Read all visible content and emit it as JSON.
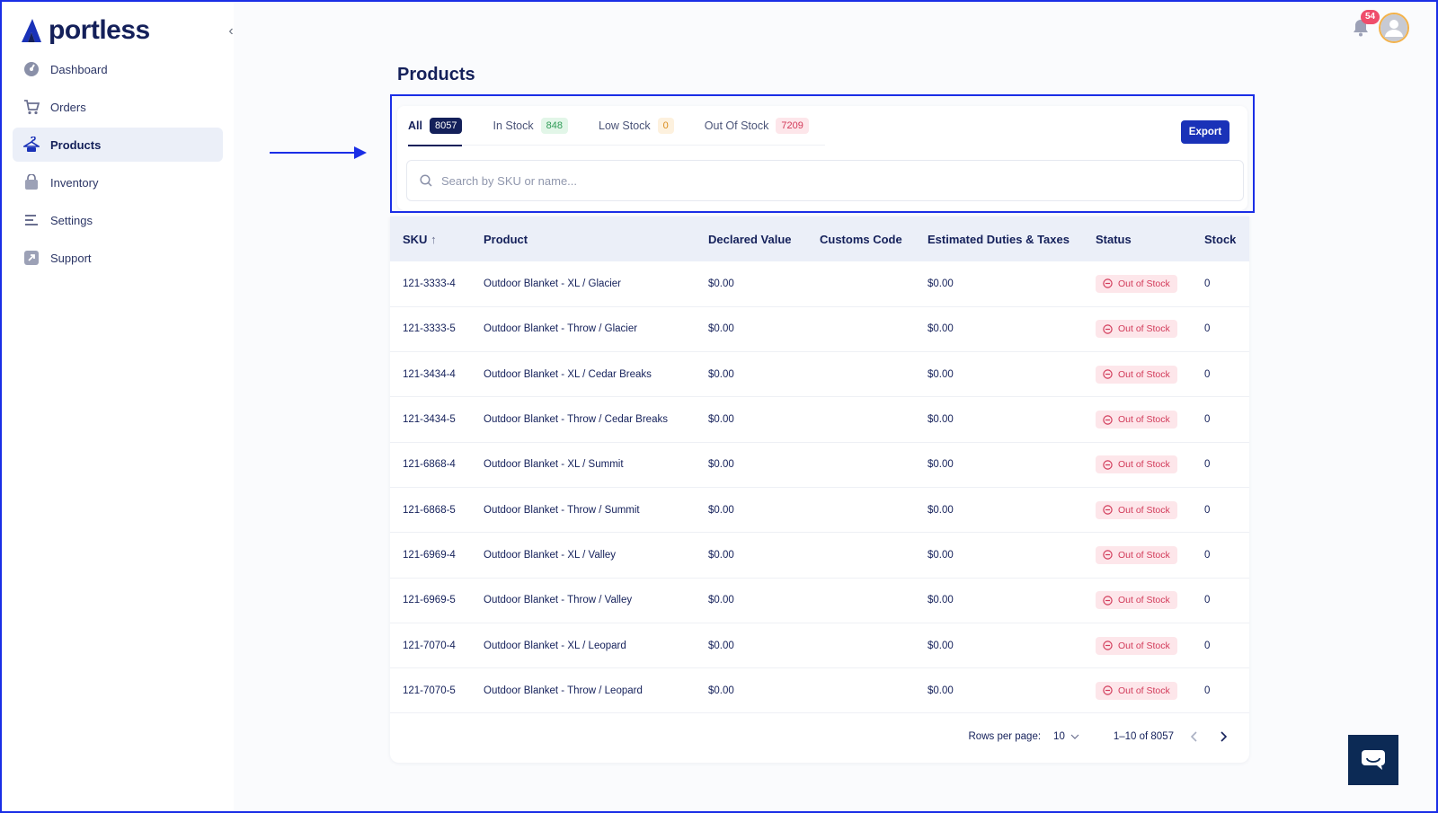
{
  "app": {
    "name": "portless"
  },
  "sidebar": {
    "items": [
      {
        "label": "Dashboard",
        "icon": "gauge-icon",
        "active": false
      },
      {
        "label": "Orders",
        "icon": "cart-icon",
        "active": false
      },
      {
        "label": "Products",
        "icon": "hanger-icon",
        "active": true
      },
      {
        "label": "Inventory",
        "icon": "bag-icon",
        "active": false
      },
      {
        "label": "Settings",
        "icon": "sliders-icon",
        "active": false
      },
      {
        "label": "Support",
        "icon": "external-link-icon",
        "active": false
      }
    ]
  },
  "header": {
    "notifications_count": "54"
  },
  "page": {
    "title": "Products"
  },
  "tabs": [
    {
      "label": "All",
      "count": "8057"
    },
    {
      "label": "In Stock",
      "count": "848"
    },
    {
      "label": "Low Stock",
      "count": "0"
    },
    {
      "label": "Out Of Stock",
      "count": "7209"
    }
  ],
  "toolbar": {
    "export_label": "Export"
  },
  "search": {
    "placeholder": "Search by SKU or name..."
  },
  "table": {
    "columns": [
      "SKU",
      "Product",
      "Declared Value",
      "Customs Code",
      "Estimated Duties & Taxes",
      "Status",
      "Stock"
    ],
    "rows": [
      {
        "sku": "121-3333-4",
        "product": "Outdoor Blanket - XL / Glacier",
        "declared": "$0.00",
        "customs": "",
        "duties": "$0.00",
        "status": "Out of Stock",
        "stock": "0"
      },
      {
        "sku": "121-3333-5",
        "product": "Outdoor Blanket - Throw / Glacier",
        "declared": "$0.00",
        "customs": "",
        "duties": "$0.00",
        "status": "Out of Stock",
        "stock": "0"
      },
      {
        "sku": "121-3434-4",
        "product": "Outdoor Blanket - XL / Cedar Breaks",
        "declared": "$0.00",
        "customs": "",
        "duties": "$0.00",
        "status": "Out of Stock",
        "stock": "0"
      },
      {
        "sku": "121-3434-5",
        "product": "Outdoor Blanket - Throw / Cedar Breaks",
        "declared": "$0.00",
        "customs": "",
        "duties": "$0.00",
        "status": "Out of Stock",
        "stock": "0"
      },
      {
        "sku": "121-6868-4",
        "product": "Outdoor Blanket - XL / Summit",
        "declared": "$0.00",
        "customs": "",
        "duties": "$0.00",
        "status": "Out of Stock",
        "stock": "0"
      },
      {
        "sku": "121-6868-5",
        "product": "Outdoor Blanket - Throw / Summit",
        "declared": "$0.00",
        "customs": "",
        "duties": "$0.00",
        "status": "Out of Stock",
        "stock": "0"
      },
      {
        "sku": "121-6969-4",
        "product": "Outdoor Blanket - XL / Valley",
        "declared": "$0.00",
        "customs": "",
        "duties": "$0.00",
        "status": "Out of Stock",
        "stock": "0"
      },
      {
        "sku": "121-6969-5",
        "product": "Outdoor Blanket - Throw / Valley",
        "declared": "$0.00",
        "customs": "",
        "duties": "$0.00",
        "status": "Out of Stock",
        "stock": "0"
      },
      {
        "sku": "121-7070-4",
        "product": "Outdoor Blanket - XL / Leopard",
        "declared": "$0.00",
        "customs": "",
        "duties": "$0.00",
        "status": "Out of Stock",
        "stock": "0"
      },
      {
        "sku": "121-7070-5",
        "product": "Outdoor Blanket - Throw / Leopard",
        "declared": "$0.00",
        "customs": "",
        "duties": "$0.00",
        "status": "Out of Stock",
        "stock": "0"
      }
    ]
  },
  "pagination": {
    "rows_label": "Rows per page:",
    "rows_value": "10",
    "range": "1–10 of 8057"
  },
  "colors": {
    "brand": "#14205a",
    "accent": "#1a32b8",
    "highlight": "#1a2ee6",
    "danger": "#d23a59",
    "success": "#2f9b57",
    "warning": "#d98c1c"
  }
}
